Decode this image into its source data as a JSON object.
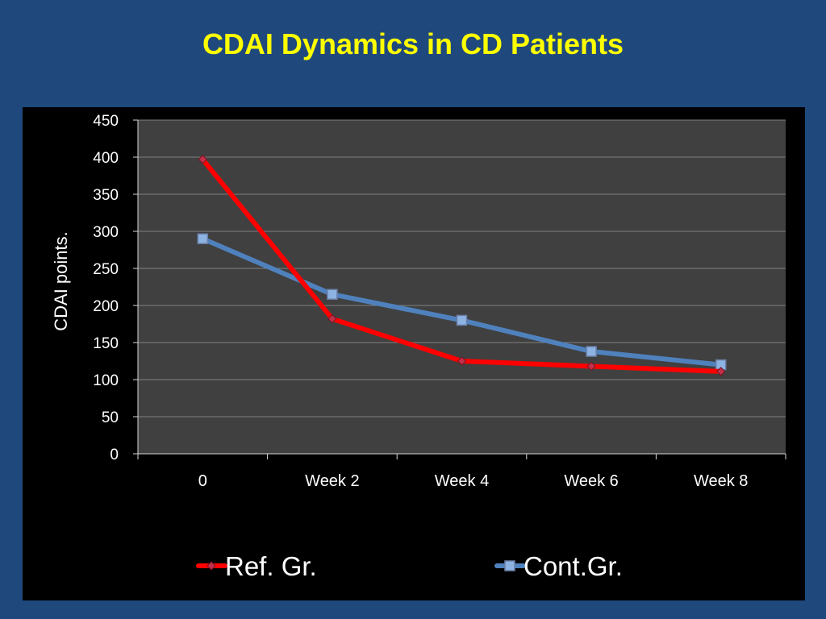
{
  "slide": {
    "title": "CDAI Dynamics in CD Patients"
  },
  "colors": {
    "background": "#1f497d",
    "title": "#ffff00",
    "plot_area": "#404040",
    "ref_series": "#ff0000",
    "cont_series": "#4f81bd"
  },
  "chart_data": {
    "type": "line",
    "title": "",
    "xlabel": "",
    "ylabel": "CDAI points.",
    "categories": [
      "0",
      "Week 2",
      "Week 4",
      "Week 6",
      "Week 8"
    ],
    "ylim": [
      0,
      450
    ],
    "yticks": [
      0,
      50,
      100,
      150,
      200,
      250,
      300,
      350,
      400,
      450
    ],
    "grid": true,
    "legend_position": "bottom",
    "series": [
      {
        "name": "Ref. Gr.",
        "color": "#ff0000",
        "marker": "diamond",
        "values": [
          397,
          182,
          125,
          118,
          111
        ]
      },
      {
        "name": "Cont.Gr.",
        "color": "#4f81bd",
        "marker": "square",
        "values": [
          290,
          215,
          180,
          138,
          120
        ]
      }
    ]
  }
}
